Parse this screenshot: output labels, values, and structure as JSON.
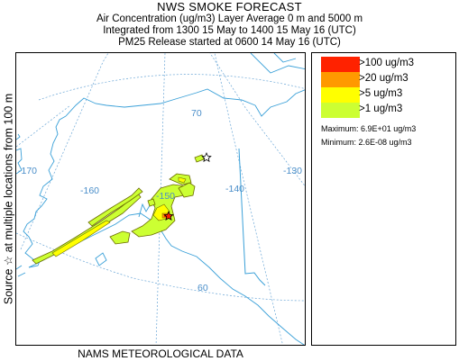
{
  "header": {
    "title": "NWS SMOKE FORECAST",
    "line1": "Air Concentration (ug/m3) Layer Average    0 m and  5000 m",
    "line2": "Integrated from 1300 15 May to 1400 15 May 16 (UTC)",
    "line3": "PM25 Release started at 0600 14 May 16 (UTC)"
  },
  "side_label": "Source ☆  at multiple locations  from  100 m",
  "footer": "NAMS METEOROLOGICAL DATA",
  "map": {
    "longitude_labels": [
      "-170",
      "-160",
      "-150",
      "-140",
      "-130"
    ],
    "latitude_labels": [
      "70",
      "60"
    ],
    "colors": {
      "coastline": "#3aa0d8",
      "gridline": "#6aa6d6",
      "grid_label": "#4a8ec9"
    }
  },
  "legend": {
    "entries": [
      {
        "label": ">100 ug/m3",
        "color": "#ff2200"
      },
      {
        "label": ">20 ug/m3",
        "color": "#ff9900"
      },
      {
        "label": ">5 ug/m3",
        "color": "#ffff00"
      },
      {
        "label": ">1 ug/m3",
        "color": "#ccff33"
      }
    ],
    "maximum": "Maximum: 6.9E+01 ug/m3",
    "minimum": "Minimum: 2.6E-08 ug/m3"
  }
}
